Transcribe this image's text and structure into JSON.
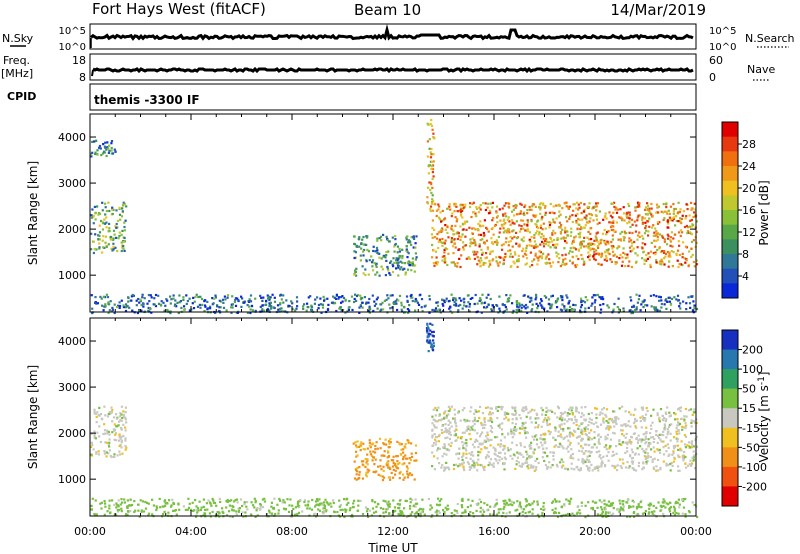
{
  "header": {
    "station": "Fort Hays West (fitACF)",
    "beam": "Beam 10",
    "date": "14/Mar/2019"
  },
  "summary": {
    "nsky_label": "N.Sky",
    "nsky_ticks": [
      "10^5",
      "10^0"
    ],
    "nsearch_label": "N.Search",
    "freq_label_1": "Freq.",
    "freq_label_2": "[MHz]",
    "freq_ticks": [
      "18",
      "8"
    ],
    "nave_label": "Nave",
    "nave_ticks": [
      "60",
      "0"
    ],
    "cpid_label": "CPID",
    "cpid_value": "themis -3300 IF"
  },
  "chart_data": [
    {
      "type": "heatmap",
      "quantity": "Power",
      "xlabel": "",
      "ylabel": "Slant Range [km]",
      "x_range_hours": [
        0,
        24
      ],
      "ylim": [
        200,
        4500
      ],
      "y_ticks": [
        1000,
        2000,
        3000,
        4000
      ],
      "colorbar": {
        "label": "Power [dB]",
        "range": [
          0,
          32
        ],
        "ticks": [
          4,
          8,
          12,
          16,
          20,
          24,
          28
        ],
        "colors": [
          "#0a28d8",
          "#2050b8",
          "#307898",
          "#3c9060",
          "#58a848",
          "#88c038",
          "#c0c830",
          "#f0c020",
          "#f09818",
          "#f07010",
          "#e83810",
          "#e00000"
        ]
      },
      "echo_regions": [
        {
          "name": "early scatter",
          "t": [
            0.0,
            1.4
          ],
          "range_km": [
            1500,
            2600
          ],
          "power_db": 12
        },
        {
          "name": "early far scatter",
          "t": [
            0.0,
            1.0
          ],
          "range_km": [
            3600,
            3950
          ],
          "power_db": 8
        },
        {
          "name": "pre-midday arc",
          "t": [
            10.4,
            12.9
          ],
          "range_km": [
            1000,
            1900
          ],
          "power_db": 10
        },
        {
          "name": "spike",
          "t": [
            13.3,
            13.6
          ],
          "range_km": [
            2400,
            4400
          ],
          "power_db": 20
        },
        {
          "name": "afternoon band",
          "t": [
            13.5,
            24.0
          ],
          "range_km": [
            1200,
            2600
          ],
          "power_db": 22
        },
        {
          "name": "near-range clutter",
          "t": [
            0.0,
            24.0
          ],
          "range_km": [
            200,
            600
          ],
          "power_db": 6
        }
      ]
    },
    {
      "type": "heatmap",
      "quantity": "Velocity",
      "xlabel": "Time UT",
      "ylabel": "Slant Range [km]",
      "x_range_hours": [
        0,
        24
      ],
      "x_ticks": [
        "00:00",
        "04:00",
        "08:00",
        "12:00",
        "16:00",
        "20:00",
        "00:00"
      ],
      "ylim": [
        200,
        4500
      ],
      "y_ticks": [
        1000,
        2000,
        3000,
        4000
      ],
      "colorbar": {
        "label": "Velocity [m s^-1]",
        "ticks": [
          200,
          100,
          50,
          15,
          -15,
          -50,
          -100,
          -200
        ],
        "colors": [
          "#1830c0",
          "#2878b0",
          "#30a060",
          "#78c040",
          "#c8c8c0",
          "#f0c020",
          "#f09018",
          "#f05010",
          "#e00000"
        ]
      },
      "echo_regions": [
        {
          "name": "early scatter",
          "t": [
            0.0,
            1.4
          ],
          "range_km": [
            1500,
            2600
          ],
          "velocity_ms": 0
        },
        {
          "name": "pre-midday arc",
          "t": [
            10.4,
            12.9
          ],
          "range_km": [
            1000,
            1900
          ],
          "velocity_ms": -60
        },
        {
          "name": "spike",
          "t": [
            13.3,
            13.6
          ],
          "range_km": [
            3800,
            4400
          ],
          "velocity_ms": 200
        },
        {
          "name": "afternoon band",
          "t": [
            13.5,
            24.0
          ],
          "range_km": [
            1200,
            2600
          ],
          "velocity_ms": 0
        },
        {
          "name": "near-range ground scatter",
          "t": [
            0.0,
            24.0
          ],
          "range_km": [
            200,
            600
          ],
          "velocity_ms": 30
        }
      ]
    }
  ]
}
